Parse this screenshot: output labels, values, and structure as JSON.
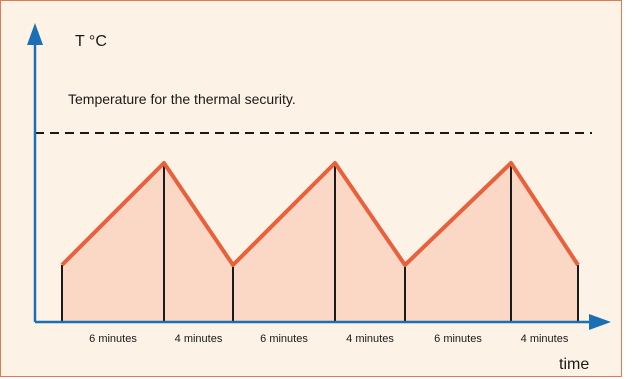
{
  "diagram": {
    "y_axis_label": "T °C",
    "x_axis_label": "time",
    "threshold_label": "Temperature for the thermal security.",
    "segments": [
      {
        "label": "6 minutes",
        "phase": "heating"
      },
      {
        "label": "4 minutes",
        "phase": "cooling"
      },
      {
        "label": "6 minutes",
        "phase": "heating"
      },
      {
        "label": "4 minutes",
        "phase": "cooling"
      },
      {
        "label": "6 minutes",
        "phase": "heating"
      },
      {
        "label": "4 minutes",
        "phase": "cooling"
      }
    ]
  },
  "colors": {
    "background": "#fdf2e6",
    "border": "#e07a52",
    "axis": "#1a6fb5",
    "curve": "#e8603c",
    "fill": "#fbd7c5",
    "threshold": "#1a1a1a",
    "marker": "#1a1a1a"
  }
}
